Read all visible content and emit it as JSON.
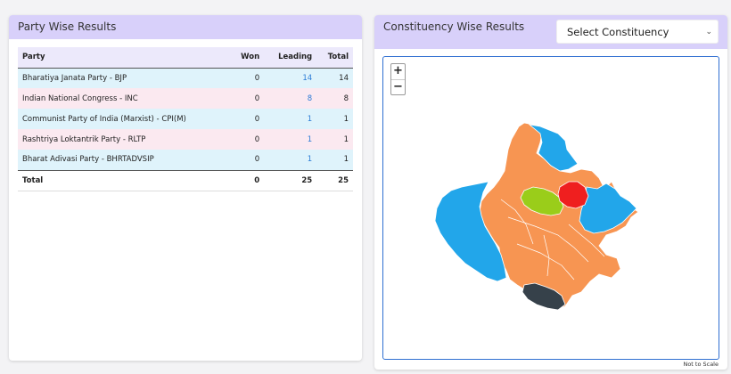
{
  "left_panel": {
    "title": "Party Wise Results",
    "columns": [
      "Party",
      "Won",
      "Leading",
      "Total"
    ],
    "rows": [
      {
        "party": "Bharatiya Janata Party - BJP",
        "won": "0",
        "leading": "14",
        "total": "14"
      },
      {
        "party": "Indian National Congress - INC",
        "won": "0",
        "leading": "8",
        "total": "8"
      },
      {
        "party": "Communist Party of India (Marxist) - CPI(M)",
        "won": "0",
        "leading": "1",
        "total": "1"
      },
      {
        "party": "Rashtriya Loktantrik Party - RLTP",
        "won": "0",
        "leading": "1",
        "total": "1"
      },
      {
        "party": "Bharat Adivasi Party - BHRTADVSIP",
        "won": "0",
        "leading": "1",
        "total": "1"
      }
    ],
    "total_row": {
      "label": "Total",
      "won": "0",
      "leading": "25",
      "total": "25"
    }
  },
  "right_panel": {
    "title": "Constituency Wise Results",
    "select_value": "Select Constituency",
    "zoom_in": "+",
    "zoom_out": "−",
    "scale_note": "Not to Scale"
  },
  "colors": {
    "header_bg": "#d8d0fa",
    "bjp": "#f79552",
    "inc": "#22a6ea",
    "cpim": "#ef1f1f",
    "rltp": "#9acd1a",
    "bap": "#36414a",
    "map_border": "#2f6fd1"
  }
}
